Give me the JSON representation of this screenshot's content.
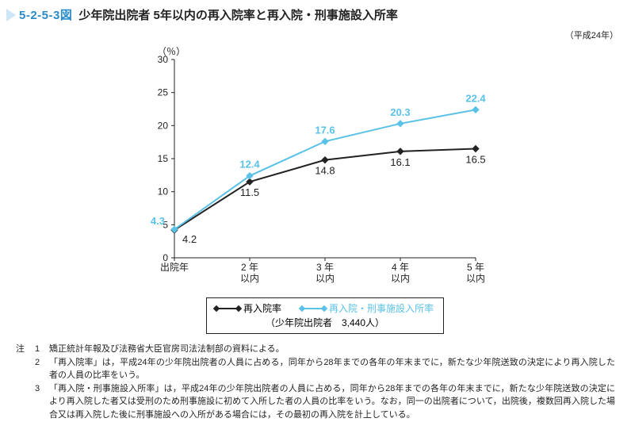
{
  "header": {
    "fig_number": "5-2-5-3図",
    "title": "少年院出院者 5年以内の再入院率と再入院・刑事施設入所率"
  },
  "year_note": "（平成24年）",
  "chart": {
    "type": "line",
    "y_unit": "（％）",
    "ylim": [
      0,
      30
    ],
    "ytick_step": 5,
    "categories": [
      "出院年",
      "2 年\n以内",
      "3 年\n以内",
      "4 年\n以内",
      "5 年\n以内"
    ],
    "series": [
      {
        "name": "再入院率",
        "color": "#222222",
        "values": [
          4.2,
          11.5,
          14.8,
          16.1,
          16.5
        ]
      },
      {
        "name": "再入院・刑事施設入所率",
        "color": "#5bc2e7",
        "values": [
          4.3,
          12.4,
          17.6,
          20.3,
          22.4
        ]
      }
    ]
  },
  "legend": {
    "item1": "再入院率",
    "item2": "再入院・刑事施設入所率",
    "subnote": "（少年院出院者　3,440人）"
  },
  "notes": {
    "label": "注",
    "items": [
      {
        "num": "1",
        "text": "矯正統計年報及び法務省大臣官房司法法制部の資料による。"
      },
      {
        "num": "2",
        "text": "「再入院率」は，平成24年の少年院出院者の人員に占める，同年から28年までの各年の年末までに，新たな少年院送致の決定により再入院した者の人員の比率をいう。"
      },
      {
        "num": "3",
        "text": "「再入院・刑事施設入所率」は，平成24年の少年院出院者の人員に占める，同年から28年までの各年の年末までに，新たな少年院送致の決定により再入院した者又は受刑のため刑事施設に初めて入所した者の人員の比率をいう。なお，同一の出院者について，出院後，複数回再入院した場合又は再入院した後に刑事施設への入所がある場合には，その最初の再入院を計上している。"
      }
    ]
  }
}
